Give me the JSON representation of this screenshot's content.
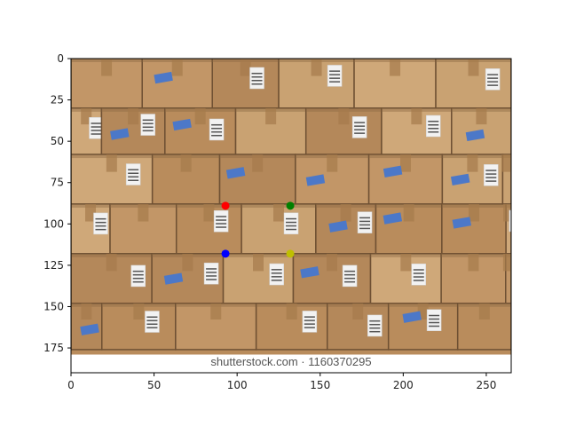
{
  "image": {
    "description_tag": "stack-of-cardboard-boxes",
    "watermark": "shutterstock.com · 1160370295",
    "colors": {
      "box_light": "#c9a272",
      "box_mid": "#b98c5c",
      "box_dark": "#8e6a44",
      "seam": "#6e5033",
      "label_white": "#f2f2f2",
      "sticker_blue": "#4c78c8"
    }
  },
  "axes": {
    "x_ticks": [
      0,
      50,
      100,
      150,
      200,
      250
    ],
    "y_ticks": [
      0,
      25,
      50,
      75,
      100,
      125,
      150,
      175
    ],
    "xlim": [
      0,
      265
    ],
    "ylim": [
      190,
      0
    ]
  },
  "markers": [
    {
      "name": "red-point",
      "x": 93,
      "y": 89,
      "color": "#ff0000"
    },
    {
      "name": "green-point",
      "x": 132,
      "y": 89,
      "color": "#008000"
    },
    {
      "name": "blue-point",
      "x": 93,
      "y": 118,
      "color": "#0000ff"
    },
    {
      "name": "yellow-point",
      "x": 132,
      "y": 118,
      "color": "#bfbf00"
    }
  ]
}
